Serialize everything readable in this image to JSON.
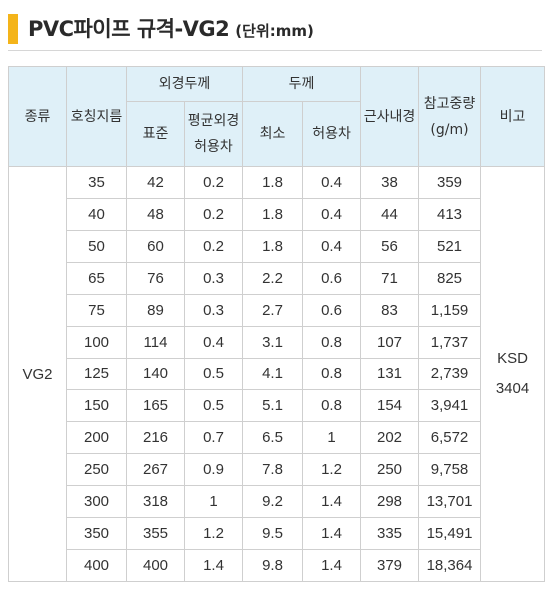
{
  "title": {
    "main": "PVC파이프 규격-VG2",
    "unit": "(단위:mm)"
  },
  "colors": {
    "accent": "#f4b41a",
    "header_bg": "#dff0f8",
    "border": "#cfcfcf"
  },
  "headers": {
    "type": "종류",
    "nominal": "호칭지름",
    "outer_group": "외경두께",
    "outer_std": "표준",
    "outer_tol_1": "평균외경",
    "outer_tol_2": "허용차",
    "thick_group": "두께",
    "thick_min": "최소",
    "thick_tol": "허용차",
    "inner": "근사내경",
    "weight_1": "참고중량",
    "weight_2": "(g/m)",
    "note": "비고"
  },
  "type_value": "VG2",
  "note_value_1": "KSD",
  "note_value_2": "3404",
  "rows": [
    [
      "35",
      "42",
      "0.2",
      "1.8",
      "0.4",
      "38",
      "359"
    ],
    [
      "40",
      "48",
      "0.2",
      "1.8",
      "0.4",
      "44",
      "413"
    ],
    [
      "50",
      "60",
      "0.2",
      "1.8",
      "0.4",
      "56",
      "521"
    ],
    [
      "65",
      "76",
      "0.3",
      "2.2",
      "0.6",
      "71",
      "825"
    ],
    [
      "75",
      "89",
      "0.3",
      "2.7",
      "0.6",
      "83",
      "1,159"
    ],
    [
      "100",
      "114",
      "0.4",
      "3.1",
      "0.8",
      "107",
      "1,737"
    ],
    [
      "125",
      "140",
      "0.5",
      "4.1",
      "0.8",
      "131",
      "2,739"
    ],
    [
      "150",
      "165",
      "0.5",
      "5.1",
      "0.8",
      "154",
      "3,941"
    ],
    [
      "200",
      "216",
      "0.7",
      "6.5",
      "1",
      "202",
      "6,572"
    ],
    [
      "250",
      "267",
      "0.9",
      "7.8",
      "1.2",
      "250",
      "9,758"
    ],
    [
      "300",
      "318",
      "1",
      "9.2",
      "1.4",
      "298",
      "13,701"
    ],
    [
      "350",
      "355",
      "1.2",
      "9.5",
      "1.4",
      "335",
      "15,491"
    ],
    [
      "400",
      "400",
      "1.4",
      "9.8",
      "1.4",
      "379",
      "18,364"
    ]
  ]
}
